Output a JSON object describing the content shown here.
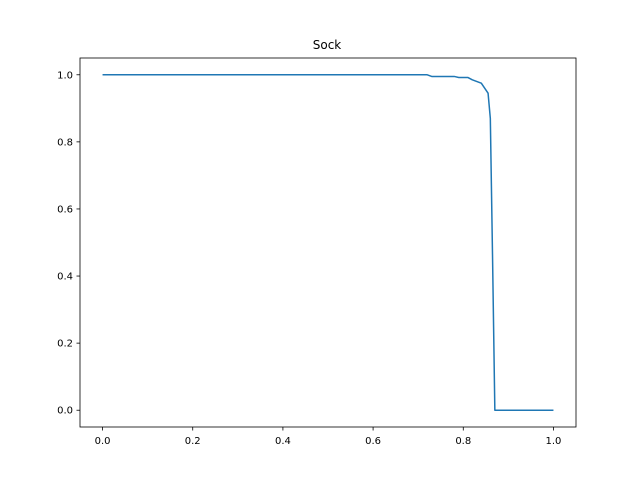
{
  "chart_data": {
    "type": "line",
    "title": "Sock",
    "xlabel": "",
    "ylabel": "",
    "xlim": [
      -0.05,
      1.05
    ],
    "ylim": [
      -0.05,
      1.05
    ],
    "xticks": [
      0.0,
      0.2,
      0.4,
      0.6,
      0.8,
      1.0
    ],
    "xtick_labels": [
      "0.0",
      "0.2",
      "0.4",
      "0.6",
      "0.8",
      "1.0"
    ],
    "yticks": [
      0.0,
      0.2,
      0.4,
      0.6,
      0.8,
      1.0
    ],
    "ytick_labels": [
      "0.0",
      "0.2",
      "0.4",
      "0.6",
      "0.8",
      "1.0"
    ],
    "grid": false,
    "legend": false,
    "colors": {
      "line": "#1f77b4",
      "axes": "#000000",
      "background": "#ffffff"
    },
    "series": [
      {
        "x": [
          0.0,
          0.1,
          0.2,
          0.3,
          0.4,
          0.5,
          0.6,
          0.7,
          0.72,
          0.73,
          0.78,
          0.79,
          0.81,
          0.82,
          0.84,
          0.855,
          0.86,
          0.865,
          0.87,
          0.9,
          1.0
        ],
        "y": [
          1.0,
          1.0,
          1.0,
          1.0,
          1.0,
          1.0,
          1.0,
          1.0,
          1.0,
          0.995,
          0.995,
          0.992,
          0.992,
          0.985,
          0.975,
          0.945,
          0.87,
          0.45,
          0.0,
          0.0,
          0.0
        ]
      }
    ]
  }
}
